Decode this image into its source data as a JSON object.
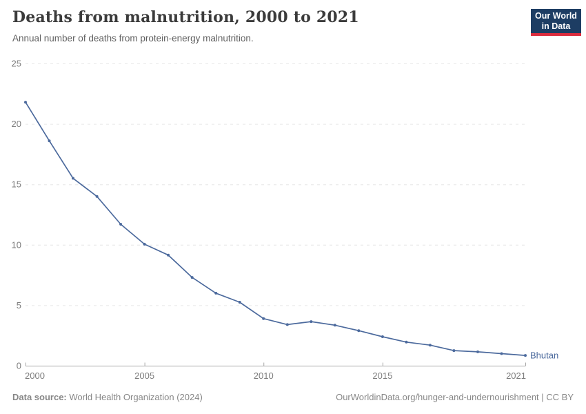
{
  "header": {
    "title": "Deaths from malnutrition, 2000 to 2021",
    "subtitle": "Annual number of deaths from protein-energy malnutrition.",
    "logo": {
      "line1": "Our World",
      "line2": "in Data",
      "bg_color": "#1d3d63",
      "accent_color": "#dc2c3e"
    }
  },
  "chart_data": {
    "type": "line",
    "title": "Deaths from malnutrition, 2000 to 2021",
    "subtitle": "Annual number of deaths from protein-energy malnutrition.",
    "x": [
      2000,
      2001,
      2002,
      2003,
      2004,
      2005,
      2006,
      2007,
      2008,
      2009,
      2010,
      2011,
      2012,
      2013,
      2014,
      2015,
      2016,
      2017,
      2018,
      2019,
      2020,
      2021
    ],
    "series": [
      {
        "name": "Bhutan",
        "color": "#4c6a9d",
        "values": [
          21.8,
          18.6,
          15.5,
          14.0,
          11.7,
          10.05,
          9.15,
          7.3,
          6.0,
          5.25,
          3.9,
          3.4,
          3.65,
          3.35,
          2.9,
          2.4,
          1.95,
          1.7,
          1.25,
          1.15,
          1.0,
          0.85
        ]
      }
    ],
    "end_label": "Bhutan",
    "xlim": [
      2000,
      2021
    ],
    "ylim": [
      0,
      25
    ],
    "xticks": [
      2000,
      2005,
      2010,
      2015,
      2021
    ],
    "yticks": [
      0,
      5,
      10,
      15,
      20,
      25
    ],
    "grid": "horizontal-dashed",
    "legend_position": "end-of-line",
    "colors": {
      "gridline": "#e6e6e6",
      "axis": "#a6a6a6",
      "tick_label": "#7d7d7d"
    }
  },
  "footer": {
    "source_label": "Data source:",
    "source_text": " World Health Organization (2024)",
    "rights": "OurWorldinData.org/hunger-and-undernourishment | CC BY"
  }
}
